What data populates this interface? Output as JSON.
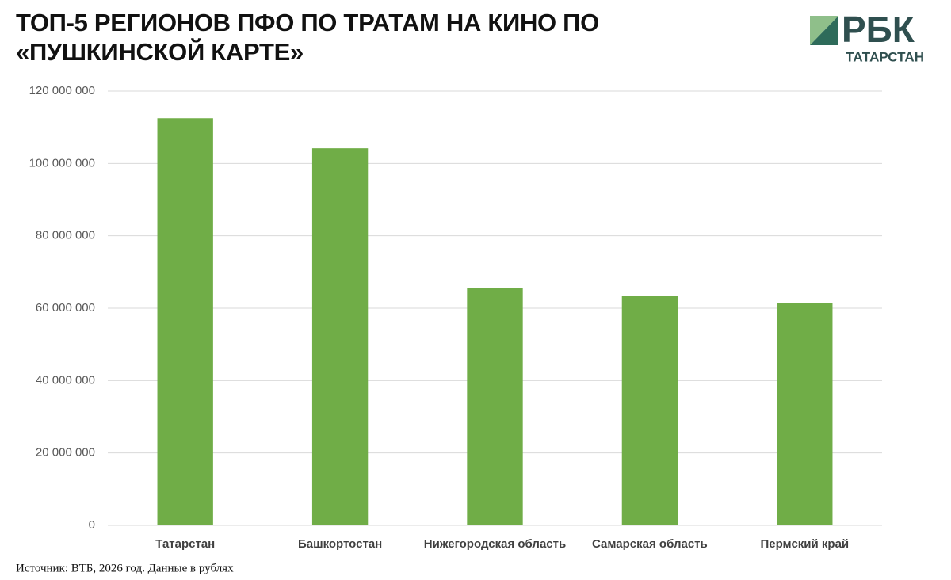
{
  "chart_data": {
    "type": "bar",
    "title": "ТОП-5 РЕГИОНОВ ПФО ПО ТРАТАМ НА КИНО ПО «ПУШКИНСКОЙ КАРТЕ»",
    "brand": "РБК",
    "brand_region": "ТАТАРСТАН",
    "source": "Источник: ВТБ, 2026 год. Данные в рублях",
    "categories": [
      "Татарстан",
      "Башкортостан",
      "Нижегородская область",
      "Самарская область",
      "Пермский край"
    ],
    "values": [
      112500000,
      104200000,
      65500000,
      63500000,
      61500000
    ],
    "color": "#70ad47",
    "ylim": [
      0,
      120000000
    ],
    "yticks": [
      0,
      {
        "value": 20000000,
        "label": "20 000 000"
      },
      {
        "value": 40000000,
        "label": "40 000 000"
      },
      {
        "value": 60000000,
        "label": "60 000 000"
      },
      {
        "value": 80000000,
        "label": "80 000 000"
      },
      {
        "value": 100000000,
        "label": "100 000 000"
      },
      {
        "value": 120000000,
        "label": "120 000 000"
      }
    ],
    "grid": true
  }
}
